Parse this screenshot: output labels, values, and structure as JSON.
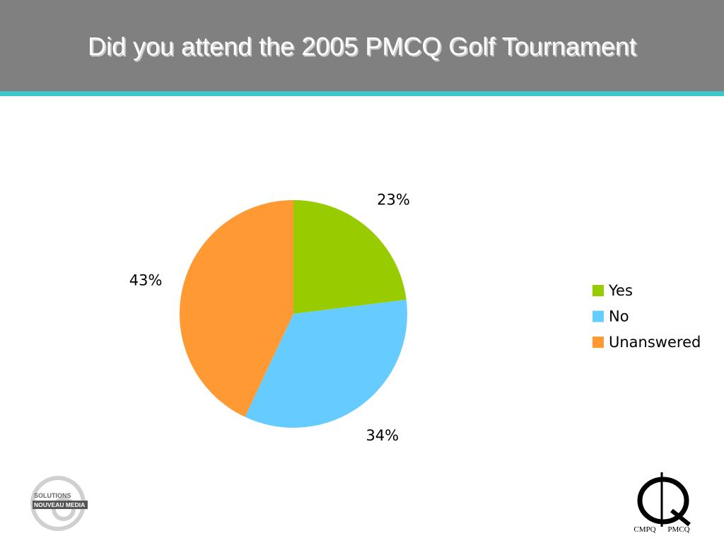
{
  "chart_data": {
    "type": "pie",
    "title": "Did you attend the 2005 PMCQ Golf Tournament",
    "categories": [
      "Yes",
      "No",
      "Unanswered"
    ],
    "values": [
      23,
      34,
      43
    ],
    "value_labels": [
      "23%",
      "34%",
      "43%"
    ],
    "colors": [
      "#99cc00",
      "#66ccff",
      "#ff9933"
    ],
    "legend": "right"
  },
  "logos": {
    "left": [
      "SOLUTIONS",
      "NOUVEAU MEDIA"
    ],
    "right": [
      "CMPQ",
      "PMCQ"
    ]
  }
}
